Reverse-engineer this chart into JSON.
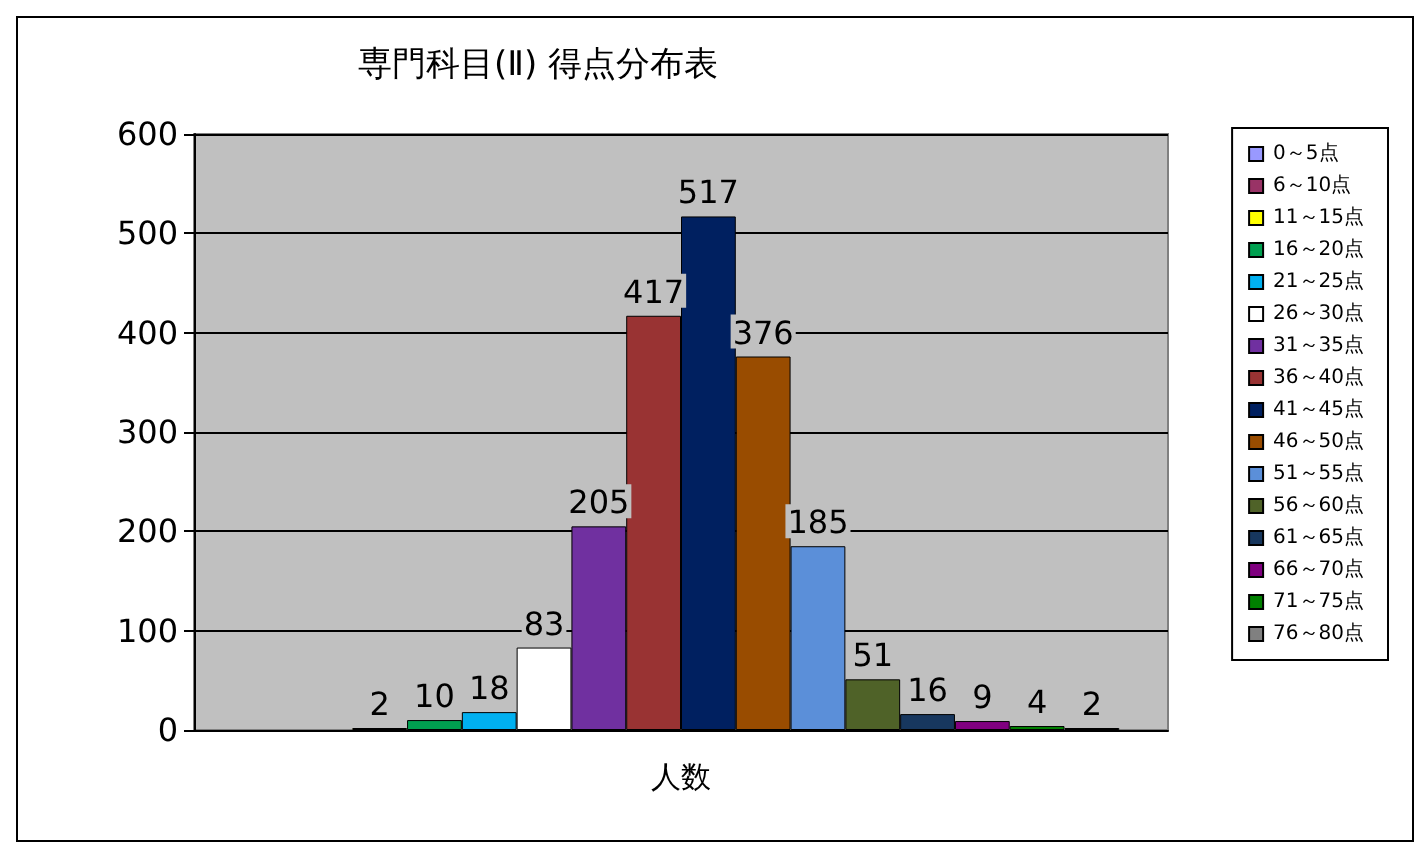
{
  "chart_data": {
    "type": "bar",
    "title": "専門科目(Ⅱ) 得点分布表",
    "categories": [
      "人数"
    ],
    "series": [
      {
        "name": "0～5点",
        "color": "#9999ff",
        "values": [
          null
        ]
      },
      {
        "name": "6～10点",
        "color": "#993366",
        "values": [
          null
        ]
      },
      {
        "name": "11～15点",
        "color": "#ffff00",
        "values": [
          2
        ]
      },
      {
        "name": "16～20点",
        "color": "#00a050",
        "values": [
          10
        ]
      },
      {
        "name": "21～25点",
        "color": "#00b0f0",
        "values": [
          18
        ]
      },
      {
        "name": "26～30点",
        "color": "#ffffff",
        "values": [
          83
        ]
      },
      {
        "name": "31～35点",
        "color": "#7030a0",
        "values": [
          205
        ]
      },
      {
        "name": "36～40点",
        "color": "#993333",
        "values": [
          417
        ]
      },
      {
        "name": "41～45点",
        "color": "#002060",
        "values": [
          517
        ]
      },
      {
        "name": "46～50点",
        "color": "#994c00",
        "values": [
          376
        ]
      },
      {
        "name": "51～55点",
        "color": "#5b8fd9",
        "values": [
          185
        ]
      },
      {
        "name": "56～60点",
        "color": "#4f6228",
        "values": [
          51
        ]
      },
      {
        "name": "61～65点",
        "color": "#17375e",
        "values": [
          16
        ]
      },
      {
        "name": "66～70点",
        "color": "#800080",
        "values": [
          9
        ]
      },
      {
        "name": "71～75点",
        "color": "#008000",
        "values": [
          4
        ]
      },
      {
        "name": "76～80点",
        "color": "#808080",
        "values": [
          2
        ]
      }
    ],
    "ylim": [
      0,
      600
    ],
    "yticks": [
      0,
      100,
      200,
      300,
      400,
      500,
      600
    ],
    "grid": "y",
    "legend": "right",
    "data_labels": true
  }
}
